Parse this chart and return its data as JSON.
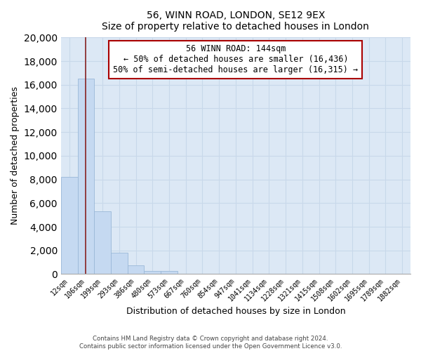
{
  "title": "56, WINN ROAD, LONDON, SE12 9EX",
  "subtitle": "Size of property relative to detached houses in London",
  "bar_labels": [
    "12sqm",
    "106sqm",
    "199sqm",
    "293sqm",
    "386sqm",
    "480sqm",
    "573sqm",
    "667sqm",
    "760sqm",
    "854sqm",
    "947sqm",
    "1041sqm",
    "1134sqm",
    "1228sqm",
    "1321sqm",
    "1415sqm",
    "1508sqm",
    "1602sqm",
    "1695sqm",
    "1789sqm",
    "1882sqm"
  ],
  "bar_heights": [
    8200,
    16500,
    5300,
    1800,
    750,
    280,
    280,
    0,
    0,
    0,
    0,
    0,
    0,
    0,
    0,
    0,
    0,
    0,
    0,
    0,
    0
  ],
  "bar_color": "#c5d9f1",
  "bar_edge_color": "#9ab8d8",
  "ylim": [
    0,
    20000
  ],
  "yticks": [
    0,
    2000,
    4000,
    6000,
    8000,
    10000,
    12000,
    14000,
    16000,
    18000,
    20000
  ],
  "xlabel": "Distribution of detached houses by size in London",
  "ylabel": "Number of detached properties",
  "property_line_label": "56 WINN ROAD: 144sqm",
  "annotation_smaller": "← 50% of detached houses are smaller (16,436)",
  "annotation_larger": "50% of semi-detached houses are larger (16,315) →",
  "annotation_box_color": "#ffffff",
  "annotation_box_edge": "#aa0000",
  "vline_color": "#882222",
  "grid_color": "#c8d8ea",
  "bg_color": "#dce8f5",
  "footer1": "Contains HM Land Registry data © Crown copyright and database right 2024.",
  "footer2": "Contains public sector information licensed under the Open Government Licence v3.0."
}
